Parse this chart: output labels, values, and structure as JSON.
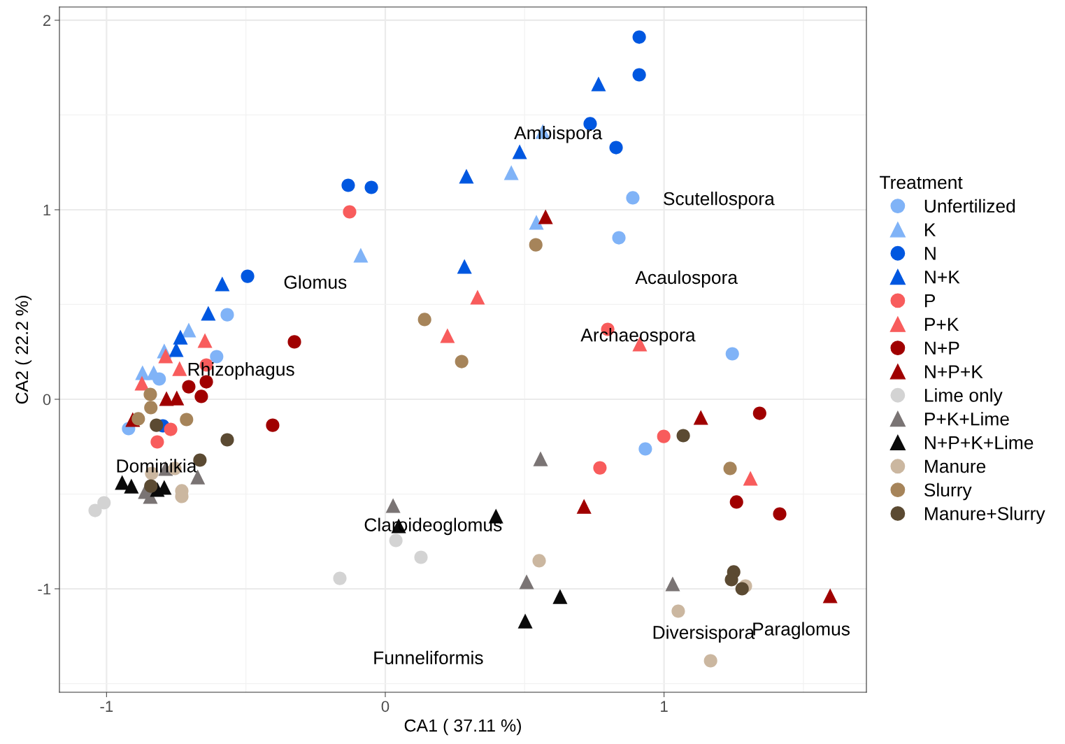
{
  "chart_data": {
    "type": "scatter",
    "xlabel": "CA1 ( 37.11 %)",
    "ylabel": "CA2 ( 22.2 %)",
    "legend_title": "Treatment",
    "legend": "right",
    "grid": true,
    "xlim": [
      -1.169,
      1.726
    ],
    "ylim": [
      -1.546,
      2.07
    ],
    "xticks": [
      -1,
      0,
      1
    ],
    "yticks": [
      -1,
      0,
      1,
      2
    ],
    "series": [
      {
        "name": "Unfertilized",
        "color": "#80b3f7",
        "marker": "circle",
        "x": [
          -0.567,
          -0.605,
          -0.811,
          -0.921,
          0.888,
          0.838,
          1.245,
          0.933
        ],
        "values": [
          0.446,
          0.225,
          0.107,
          -0.155,
          1.063,
          0.852,
          0.24,
          -0.262
        ]
      },
      {
        "name": "K",
        "color": "#80b3f7",
        "marker": "triangle",
        "x": [
          0.565,
          0.452,
          0.542,
          -0.088,
          -0.705,
          -0.793,
          -0.871,
          -0.831
        ],
        "values": [
          1.413,
          1.196,
          0.934,
          0.76,
          0.365,
          0.255,
          0.14,
          0.14
        ]
      },
      {
        "name": "N",
        "color": "#0057e0",
        "marker": "circle",
        "x": [
          0.911,
          0.911,
          0.735,
          0.828,
          -0.133,
          -0.05,
          -0.494,
          -0.798
        ],
        "values": [
          1.911,
          1.712,
          1.454,
          1.328,
          1.129,
          1.118,
          0.649,
          -0.14
        ]
      },
      {
        "name": "N+K",
        "color": "#0057e0",
        "marker": "triangle",
        "x": [
          0.765,
          0.482,
          0.291,
          0.284,
          -0.585,
          -0.635,
          -0.735,
          -0.75
        ],
        "values": [
          1.664,
          1.306,
          1.177,
          0.701,
          0.609,
          0.454,
          0.328,
          0.262
        ]
      },
      {
        "name": "P",
        "color": "#f85c5c",
        "marker": "circle",
        "x": [
          -0.128,
          0.798,
          0.999,
          0.77,
          -0.642,
          -0.77,
          -0.818
        ],
        "values": [
          0.989,
          0.369,
          -0.196,
          -0.362,
          0.181,
          -0.159,
          -0.225
        ]
      },
      {
        "name": "P+K",
        "color": "#f85c5c",
        "marker": "triangle",
        "x": [
          0.331,
          0.223,
          0.913,
          1.31,
          -0.647,
          -0.788,
          -0.738,
          -0.873
        ],
        "values": [
          0.539,
          0.336,
          0.292,
          -0.417,
          0.31,
          0.229,
          0.162,
          0.085
        ]
      },
      {
        "name": "N+P",
        "color": "#a00000",
        "marker": "circle",
        "x": [
          -0.326,
          -0.404,
          1.343,
          1.26,
          1.415,
          -0.705,
          -0.642,
          -0.66
        ],
        "values": [
          0.303,
          -0.137,
          -0.074,
          -0.542,
          -0.605,
          0.066,
          0.092,
          0.015
        ]
      },
      {
        "name": "N+P+K",
        "color": "#a00000",
        "marker": "triangle",
        "x": [
          0.575,
          1.132,
          0.713,
          1.596,
          -0.785,
          -0.748,
          -0.906
        ],
        "values": [
          0.963,
          -0.096,
          -0.565,
          -1.037,
          0.004,
          0.007,
          -0.107
        ]
      },
      {
        "name": "Lime only",
        "color": "#d3d3d3",
        "marker": "circle",
        "x": [
          -1.041,
          -1.009,
          -0.163,
          0.038,
          0.128
        ],
        "values": [
          -0.587,
          -0.546,
          -0.945,
          -0.745,
          -0.834
        ]
      },
      {
        "name": "P+K+Lime",
        "color": "#7a7474",
        "marker": "triangle",
        "x": [
          0.028,
          0.557,
          0.507,
          1.031,
          -0.673,
          -0.861,
          -0.843,
          -0.788
        ],
        "values": [
          -0.561,
          -0.314,
          -0.963,
          -0.974,
          -0.41,
          -0.487,
          -0.513,
          -0.365
        ]
      },
      {
        "name": "N+P+K+Lime",
        "color": "#0a0a0a",
        "marker": "triangle",
        "x": [
          0.048,
          0.397,
          0.627,
          0.502,
          -0.944,
          -0.911,
          -0.793,
          -0.818
        ],
        "values": [
          -0.668,
          -0.616,
          -1.041,
          -1.17,
          -0.439,
          -0.458,
          -0.465,
          -0.476
        ]
      },
      {
        "name": "Manure",
        "color": "#cbb7a0",
        "marker": "circle",
        "x": [
          0.552,
          1.051,
          1.167,
          1.292,
          -0.73,
          -0.73,
          -0.838,
          -0.755
        ],
        "values": [
          -0.852,
          -1.118,
          -1.38,
          -0.985,
          -0.483,
          -0.513,
          -0.391,
          -0.365
        ]
      },
      {
        "name": "Slurry",
        "color": "#a6845a",
        "marker": "circle",
        "x": [
          0.54,
          0.141,
          0.274,
          1.237,
          -0.843,
          -0.841,
          -0.886,
          -0.713
        ],
        "values": [
          0.815,
          0.421,
          0.199,
          -0.365,
          0.026,
          -0.044,
          -0.103,
          -0.107
        ]
      },
      {
        "name": "Manure+Slurry",
        "color": "#5b4a32",
        "marker": "circle",
        "x": [
          -0.567,
          1.069,
          1.25,
          1.242,
          1.28,
          -0.821,
          -0.665,
          -0.841
        ],
        "values": [
          -0.214,
          -0.192,
          -0.911,
          -0.952,
          -1.0,
          -0.137,
          -0.321,
          -0.458
        ]
      }
    ],
    "annotations": [
      "Ambispora",
      "Scutellospora",
      "Glomus",
      "Acaulospora",
      "Archaeospora",
      "Rhizophagus",
      "Dominikia",
      "Claroideoglomus",
      "Funneliformis",
      "Diversispora",
      "Paraglomus"
    ]
  }
}
